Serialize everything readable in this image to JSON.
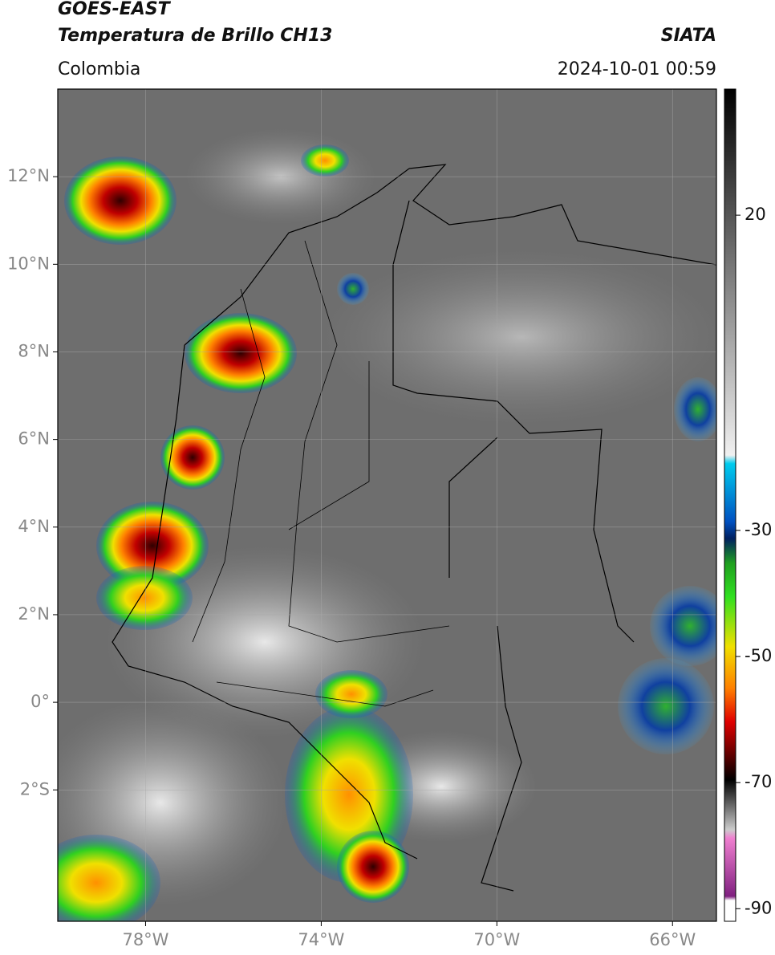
{
  "header": {
    "satellite": "GOES-EAST",
    "product": "Temperatura de Brillo CH13",
    "agency": "SIATA",
    "region": "Colombia",
    "datetime": "2024-10-01 00:59"
  },
  "map": {
    "lon_range": [
      -80,
      -65
    ],
    "lat_range": [
      -5,
      14
    ],
    "lon_ticks": [
      {
        "value": -78,
        "label": "78°W"
      },
      {
        "value": -74,
        "label": "74°W"
      },
      {
        "value": -70,
        "label": "70°W"
      },
      {
        "value": -66,
        "label": "66°W"
      }
    ],
    "lat_ticks": [
      {
        "value": 12,
        "label": "12°N"
      },
      {
        "value": 10,
        "label": "10°N"
      },
      {
        "value": 8,
        "label": "8°N"
      },
      {
        "value": 6,
        "label": "6°N"
      },
      {
        "value": 4,
        "label": "4°N"
      },
      {
        "value": 2,
        "label": "2°N"
      },
      {
        "value": 0,
        "label": "0°"
      },
      {
        "value": -2,
        "label": "2°S"
      }
    ]
  },
  "colorbar": {
    "range": [
      -92,
      40
    ],
    "ticks": [
      20,
      -30,
      -50,
      -70,
      -90
    ]
  }
}
